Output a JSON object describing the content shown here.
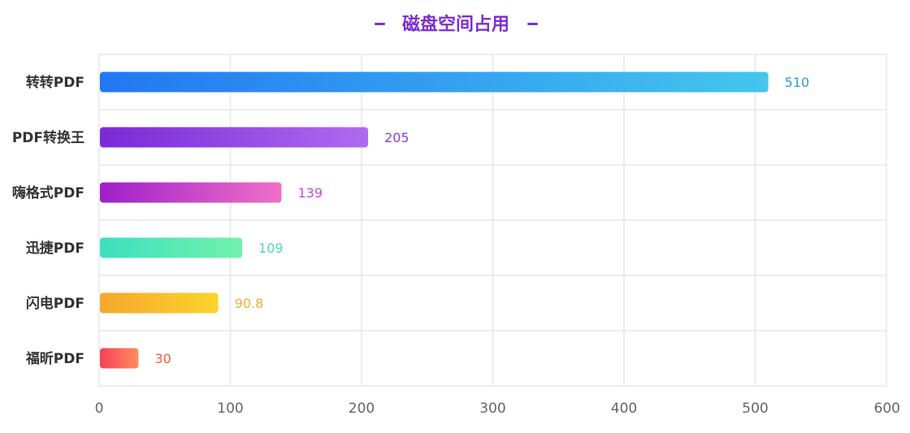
{
  "chart_data": {
    "type": "bar",
    "orientation": "horizontal",
    "title": "磁盘空间占用",
    "title_color": "#7b2fd0",
    "xlabel": "",
    "ylabel": "",
    "xlim": [
      0,
      600
    ],
    "ticks": [
      "0",
      "100",
      "200",
      "300",
      "400",
      "500",
      "600"
    ],
    "tick_values": [
      0,
      100,
      200,
      300,
      400,
      500,
      600
    ],
    "grid": true,
    "legend": "none",
    "categories": [
      "转转PDF",
      "PDF转换王",
      "嗨格式PDF",
      "迅捷PDF",
      "闪电PDF",
      "福昕PDF"
    ],
    "values": [
      510,
      205,
      139,
      109,
      90.8,
      30
    ],
    "value_labels": [
      "510",
      "205",
      "139",
      "109",
      "90.8",
      "30"
    ],
    "colors": [
      {
        "start": "#2277f2",
        "end": "#44c6ee",
        "label": "#2b9be8"
      },
      {
        "start": "#7a2ad6",
        "end": "#b06af0",
        "label": "#8a3fe0"
      },
      {
        "start": "#9e1fc9",
        "end": "#f070c8",
        "label": "#d045d9"
      },
      {
        "start": "#3ddfc0",
        "end": "#72f2aa",
        "label": "#55d4b2"
      },
      {
        "start": "#f6a72e",
        "end": "#fbd42a",
        "label": "#efb032"
      },
      {
        "start": "#f5415a",
        "end": "#ff8d5c",
        "label": "#ef5a3e"
      }
    ]
  }
}
